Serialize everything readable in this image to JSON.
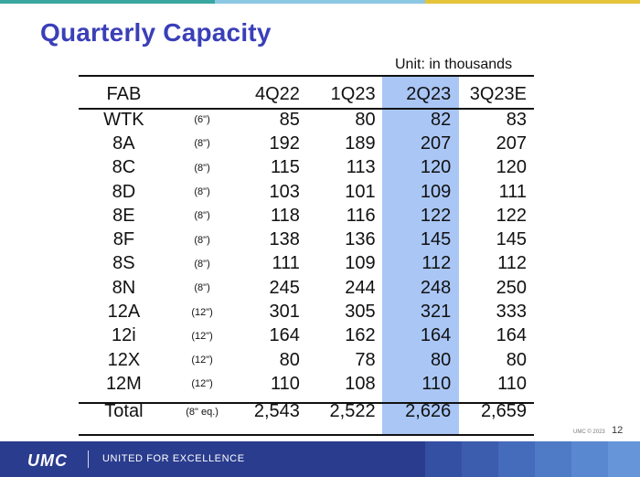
{
  "title": "Quarterly Capacity",
  "unit_note": "Unit: in thousands",
  "table": {
    "headers": [
      "FAB",
      "",
      "4Q22",
      "1Q23",
      "2Q23",
      "3Q23E"
    ],
    "rows": [
      {
        "fab": "WTK",
        "size": "(6\")",
        "v": [
          "85",
          "80",
          "82",
          "83"
        ]
      },
      {
        "fab": "8A",
        "size": "(8\")",
        "v": [
          "192",
          "189",
          "207",
          "207"
        ]
      },
      {
        "fab": "8C",
        "size": "(8\")",
        "v": [
          "115",
          "113",
          "120",
          "120"
        ]
      },
      {
        "fab": "8D",
        "size": "(8\")",
        "v": [
          "103",
          "101",
          "109",
          "111"
        ]
      },
      {
        "fab": "8E",
        "size": "(8\")",
        "v": [
          "118",
          "116",
          "122",
          "122"
        ]
      },
      {
        "fab": "8F",
        "size": "(8\")",
        "v": [
          "138",
          "136",
          "145",
          "145"
        ]
      },
      {
        "fab": "8S",
        "size": "(8\")",
        "v": [
          "111",
          "109",
          "112",
          "112"
        ]
      },
      {
        "fab": "8N",
        "size": "(8\")",
        "v": [
          "245",
          "244",
          "248",
          "250"
        ]
      },
      {
        "fab": "12A",
        "size": "(12\")",
        "v": [
          "301",
          "305",
          "321",
          "333"
        ]
      },
      {
        "fab": "12i",
        "size": "(12\")",
        "v": [
          "164",
          "162",
          "164",
          "164"
        ]
      },
      {
        "fab": "12X",
        "size": "(12\")",
        "v": [
          "80",
          "78",
          "80",
          "80"
        ]
      },
      {
        "fab": "12M",
        "size": "(12\")",
        "v": [
          "110",
          "108",
          "110",
          "110"
        ]
      }
    ],
    "total": {
      "fab": "Total",
      "size": "(8\" eq.)",
      "v": [
        "2,543",
        "2,522",
        "2,626",
        "2,659"
      ]
    }
  },
  "footer": {
    "logo": "UMC",
    "tagline": "UNITED FOR EXCELLENCE",
    "copyright": "UMC © 2023",
    "page_number": "12"
  },
  "colors": {
    "title": "#3a3fb8",
    "highlight_column": "#a9c6f5",
    "footer": "#2a3c8e"
  }
}
